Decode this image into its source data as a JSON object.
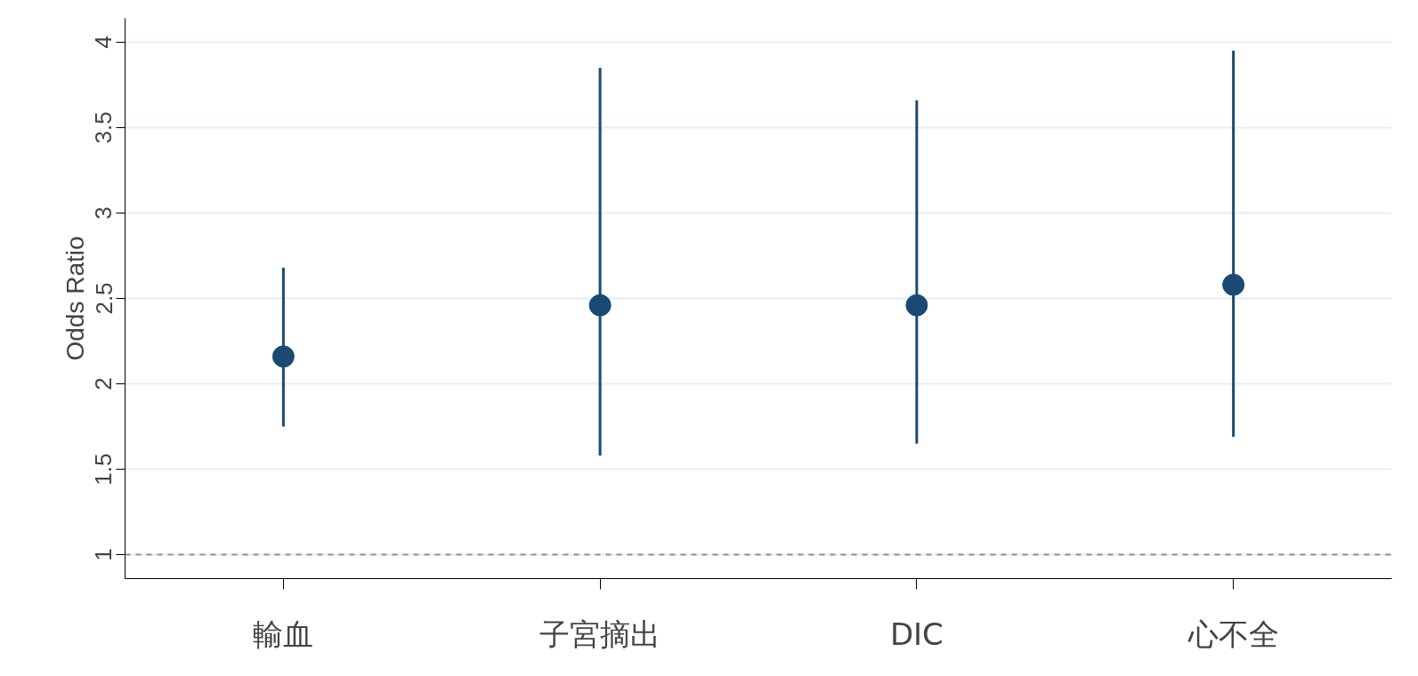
{
  "chart_data": {
    "type": "scatter",
    "ylabel": "Odds Ratio",
    "categories": [
      "輸血",
      "子宮摘出",
      "DIC",
      "心不全"
    ],
    "values": [
      2.16,
      2.46,
      2.46,
      2.58
    ],
    "errors": [
      [
        1.75,
        2.68
      ],
      [
        1.58,
        3.85
      ],
      [
        1.65,
        3.66
      ],
      [
        1.69,
        3.95
      ]
    ],
    "color": "#1a4a72",
    "marker": "circle",
    "ylim": [
      0.86,
      4.14
    ],
    "yticks": [
      1,
      1.5,
      2,
      2.5,
      3,
      3.5,
      4
    ],
    "grid": "y",
    "ref_lines": [
      {
        "axis": "y",
        "value": 1,
        "color": "#909090",
        "line_style": "dashed"
      }
    ]
  }
}
